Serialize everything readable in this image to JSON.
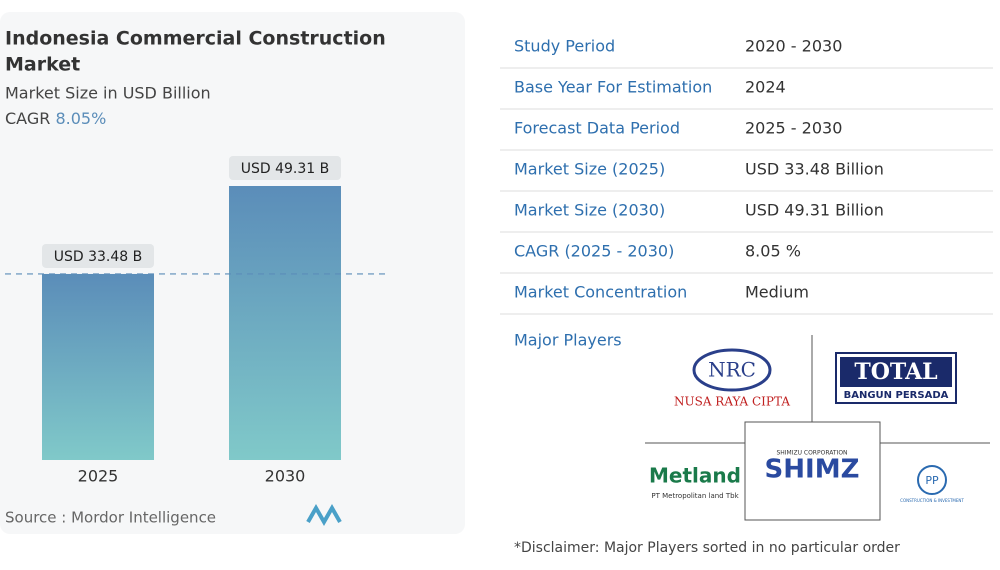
{
  "chart_data": {
    "type": "bar",
    "title_lines": [
      "Indonesia Commercial Construction",
      "Market"
    ],
    "subtitle": "Market Size in USD Billion",
    "cagr_label": "CAGR",
    "cagr": "8.05%",
    "categories": [
      "2025",
      "2030"
    ],
    "values": [
      33.48,
      49.31
    ],
    "value_labels": [
      "USD 33.48 B",
      "USD 49.31 B"
    ],
    "source": "Source : Mordor Intelligence"
  },
  "table": {
    "rows": [
      [
        "Study Period",
        "2020 - 2030"
      ],
      [
        "Base Year For Estimation",
        "2024"
      ],
      [
        "Forecast Data Period",
        "2025 - 2030"
      ],
      [
        "Market Size (2025)",
        "USD 33.48 Billion"
      ],
      [
        "Market Size (2030)",
        "USD 49.31 Billion"
      ],
      [
        "CAGR (2025 - 2030)",
        "8.05 %"
      ],
      [
        "Market Concentration",
        "Medium"
      ]
    ]
  },
  "players": {
    "heading": "Major Players",
    "logos": {
      "nrc": "NRC",
      "nrc_name": "NUSA RAYA CIPTA",
      "total": "TOTAL",
      "total_sub": "BANGUN PERSADA",
      "metland": "Metland",
      "metland_sub": "PT Metropolitan land Tbk",
      "shimizu_sub": "SHIMIZU CORPORATION",
      "shimizu": "SHIMZ",
      "pp": "PP",
      "pp_sub": "CONSTRUCTION & INVESTMENT"
    }
  },
  "disclaimer": "*Disclaimer: Major Players sorted in no particular order"
}
